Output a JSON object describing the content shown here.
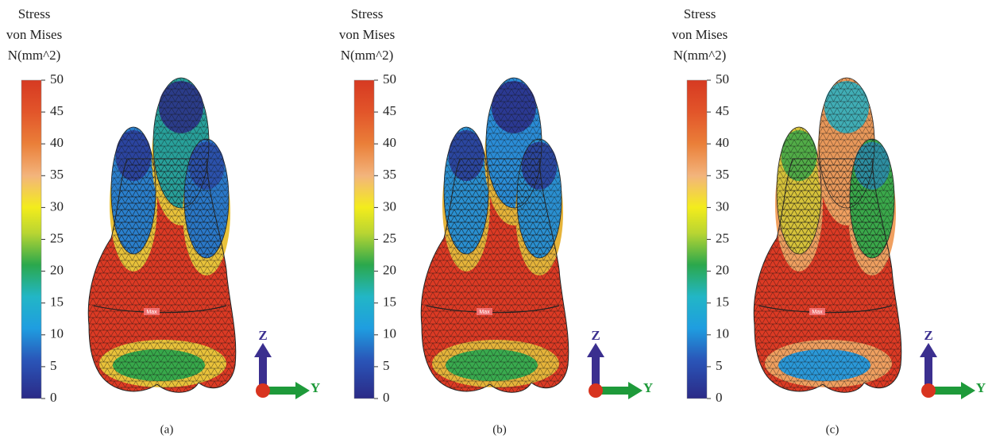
{
  "panels": [
    {
      "title": [
        "Stress",
        "von Mises",
        "N(mm^2)"
      ],
      "ticks": [
        0,
        5,
        10,
        15,
        20,
        25,
        30,
        35,
        40,
        45,
        50
      ],
      "max_label": "Max",
      "axes": {
        "z": "Z",
        "y": "Y"
      },
      "caption": "(a)"
    },
    {
      "title": [
        "Stress",
        "von Mises",
        "N(mm^2)"
      ],
      "ticks": [
        0,
        5,
        10,
        15,
        20,
        25,
        30,
        35,
        40,
        45,
        50
      ],
      "max_label": "Max",
      "axes": {
        "z": "Z",
        "y": "Y"
      },
      "caption": "(b)"
    },
    {
      "title": [
        "Stress",
        "von Mises",
        "N(mm^2)"
      ],
      "ticks": [
        0,
        5,
        10,
        15,
        20,
        25,
        30,
        35,
        40,
        45,
        50
      ],
      "max_label": "Max",
      "axes": {
        "z": "Z",
        "y": "Y"
      },
      "caption": "(c)"
    }
  ]
}
